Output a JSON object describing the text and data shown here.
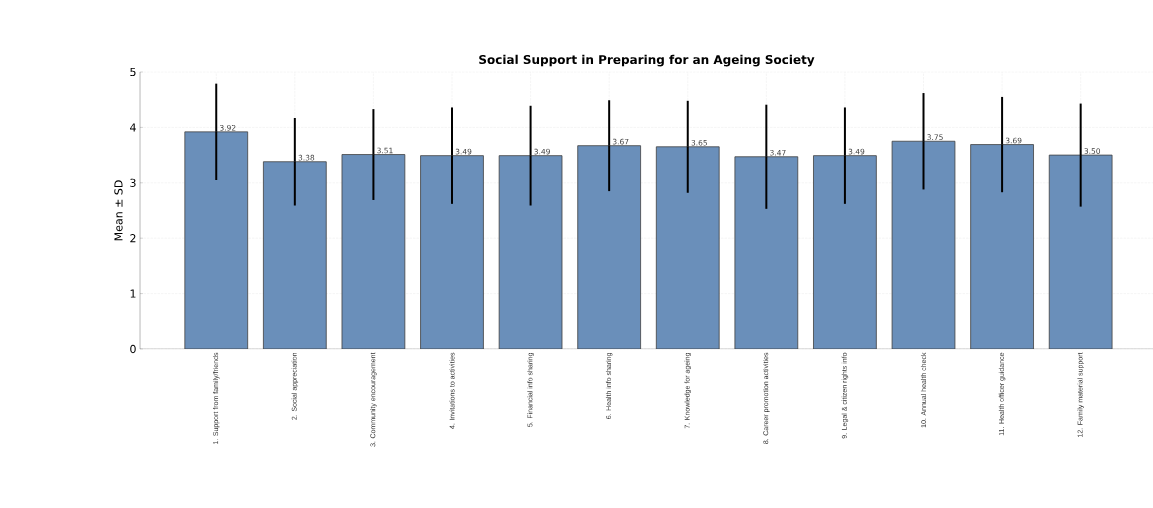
{
  "chart_data": {
    "type": "bar",
    "title": "Social Support in Preparing for an Ageing Society",
    "ylabel": "Mean ± SD",
    "categories": [
      "1. Support from family/friends",
      "2. Social appreciation",
      "3. Community encouragement",
      "4. Invitations to activities",
      "5. Financial info sharing",
      "6. Health info sharing",
      "7. Knowledge for ageing",
      "8. Career promotion activities",
      "9. Legal & citizen rights info",
      "10. Annual health check",
      "11. Health officer guidance",
      "12. Family material support"
    ],
    "values": [
      3.92,
      3.38,
      3.51,
      3.49,
      3.49,
      3.67,
      3.65,
      3.47,
      3.49,
      3.75,
      3.69,
      3.5
    ],
    "value_labels": [
      "3.92",
      "3.38",
      "3.51",
      "3.49",
      "3.49",
      "3.67",
      "3.65",
      "3.47",
      "3.49",
      "3.75",
      "3.69",
      "3.50"
    ],
    "errors": [
      0.87,
      0.79,
      0.82,
      0.87,
      0.9,
      0.82,
      0.83,
      0.94,
      0.87,
      0.87,
      0.86,
      0.93
    ],
    "color": "#6a8fba",
    "ylim": [
      0,
      5
    ],
    "yticks": [
      0,
      1,
      2,
      3,
      4,
      5
    ],
    "grid": true
  }
}
